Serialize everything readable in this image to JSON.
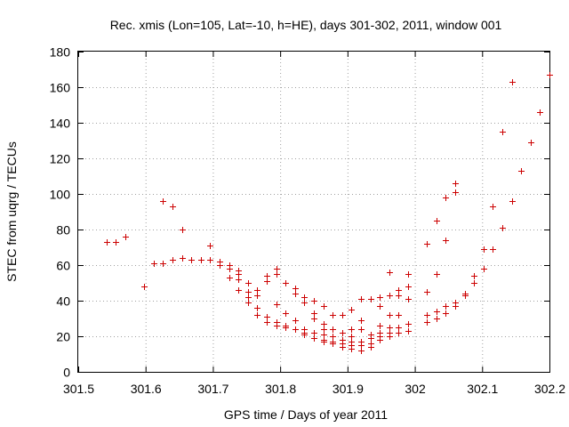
{
  "chart_data": {
    "type": "scatter",
    "title": "Rec. xmis (Lon=105, Lat=-10, h=HE), days 301-302, 2011, window 001",
    "xlabel": "GPS time / Days of year 2011",
    "ylabel": "STEC from uqrg / TECUs",
    "xlim": [
      301.5,
      302.2
    ],
    "ylim": [
      0,
      180
    ],
    "xticks": [
      "301.5",
      "301.6",
      "301.7",
      "301.8",
      "301.9",
      "302",
      "302.1",
      "302.2"
    ],
    "yticks": [
      "0",
      "20",
      "40",
      "60",
      "80",
      "100",
      "120",
      "140",
      "160",
      "180"
    ],
    "grid": true,
    "marker": "+",
    "color": "#cc0000",
    "points": [
      [
        301.542,
        73
      ],
      [
        301.556,
        73
      ],
      [
        301.57,
        76
      ],
      [
        301.598,
        48
      ],
      [
        301.612,
        61
      ],
      [
        301.626,
        96
      ],
      [
        301.626,
        61
      ],
      [
        301.64,
        93
      ],
      [
        301.64,
        63
      ],
      [
        301.654,
        80
      ],
      [
        301.654,
        64
      ],
      [
        301.668,
        63
      ],
      [
        301.682,
        63
      ],
      [
        301.696,
        71
      ],
      [
        301.696,
        63
      ],
      [
        301.71,
        62
      ],
      [
        301.71,
        60
      ],
      [
        301.724,
        60
      ],
      [
        301.724,
        58
      ],
      [
        301.724,
        53
      ],
      [
        301.738,
        57
      ],
      [
        301.738,
        55
      ],
      [
        301.738,
        52
      ],
      [
        301.738,
        46
      ],
      [
        301.752,
        50
      ],
      [
        301.752,
        45
      ],
      [
        301.752,
        42
      ],
      [
        301.752,
        39
      ],
      [
        301.766,
        46
      ],
      [
        301.766,
        43
      ],
      [
        301.766,
        36
      ],
      [
        301.766,
        32
      ],
      [
        301.78,
        54
      ],
      [
        301.78,
        51
      ],
      [
        301.78,
        31
      ],
      [
        301.78,
        28
      ],
      [
        301.794,
        58
      ],
      [
        301.794,
        55
      ],
      [
        301.794,
        38
      ],
      [
        301.794,
        28
      ],
      [
        301.794,
        26
      ],
      [
        301.808,
        50
      ],
      [
        301.808,
        33
      ],
      [
        301.808,
        26
      ],
      [
        301.808,
        25
      ],
      [
        301.822,
        47
      ],
      [
        301.822,
        44
      ],
      [
        301.822,
        29
      ],
      [
        301.822,
        24
      ],
      [
        301.836,
        42
      ],
      [
        301.836,
        39
      ],
      [
        301.836,
        24
      ],
      [
        301.836,
        22
      ],
      [
        301.836,
        21
      ],
      [
        301.85,
        40
      ],
      [
        301.85,
        33
      ],
      [
        301.85,
        30
      ],
      [
        301.85,
        22
      ],
      [
        301.85,
        19
      ],
      [
        301.864,
        37
      ],
      [
        301.864,
        27
      ],
      [
        301.864,
        24
      ],
      [
        301.864,
        21
      ],
      [
        301.864,
        18
      ],
      [
        301.864,
        17
      ],
      [
        301.878,
        32
      ],
      [
        301.878,
        24
      ],
      [
        301.878,
        20
      ],
      [
        301.878,
        17
      ],
      [
        301.878,
        16
      ],
      [
        301.892,
        32
      ],
      [
        301.892,
        22
      ],
      [
        301.892,
        18
      ],
      [
        301.892,
        16
      ],
      [
        301.892,
        14
      ],
      [
        301.906,
        35
      ],
      [
        301.906,
        24
      ],
      [
        301.906,
        20
      ],
      [
        301.906,
        17
      ],
      [
        301.906,
        15
      ],
      [
        301.906,
        13
      ],
      [
        301.92,
        41
      ],
      [
        301.92,
        29
      ],
      [
        301.92,
        24
      ],
      [
        301.92,
        17
      ],
      [
        301.92,
        15
      ],
      [
        301.92,
        12
      ],
      [
        301.934,
        41
      ],
      [
        301.934,
        21
      ],
      [
        301.934,
        19
      ],
      [
        301.934,
        16
      ],
      [
        301.934,
        14
      ],
      [
        301.948,
        42
      ],
      [
        301.948,
        37
      ],
      [
        301.948,
        26
      ],
      [
        301.948,
        22
      ],
      [
        301.948,
        20
      ],
      [
        301.948,
        18
      ],
      [
        301.962,
        56
      ],
      [
        301.962,
        43
      ],
      [
        301.962,
        32
      ],
      [
        301.962,
        25
      ],
      [
        301.962,
        22
      ],
      [
        301.962,
        20
      ],
      [
        301.976,
        46
      ],
      [
        301.976,
        43
      ],
      [
        301.976,
        32
      ],
      [
        301.976,
        25
      ],
      [
        301.976,
        22
      ],
      [
        301.99,
        55
      ],
      [
        301.99,
        48
      ],
      [
        301.99,
        41
      ],
      [
        301.99,
        27
      ],
      [
        301.99,
        23
      ],
      [
        302.018,
        72
      ],
      [
        302.018,
        45
      ],
      [
        302.018,
        32
      ],
      [
        302.018,
        28
      ],
      [
        302.032,
        85
      ],
      [
        302.032,
        55
      ],
      [
        302.032,
        34
      ],
      [
        302.032,
        30
      ],
      [
        302.046,
        98
      ],
      [
        302.046,
        74
      ],
      [
        302.046,
        37
      ],
      [
        302.046,
        33
      ],
      [
        302.06,
        106
      ],
      [
        302.06,
        101
      ],
      [
        302.06,
        39
      ],
      [
        302.06,
        37
      ],
      [
        302.074,
        44
      ],
      [
        302.074,
        43
      ],
      [
        302.088,
        54
      ],
      [
        302.088,
        50
      ],
      [
        302.102,
        69
      ],
      [
        302.102,
        58
      ],
      [
        302.116,
        93
      ],
      [
        302.116,
        69
      ],
      [
        302.13,
        135
      ],
      [
        302.13,
        81
      ],
      [
        302.144,
        163
      ],
      [
        302.144,
        96
      ],
      [
        302.158,
        113
      ],
      [
        302.172,
        129
      ],
      [
        302.186,
        146
      ],
      [
        302.2,
        167
      ]
    ]
  }
}
